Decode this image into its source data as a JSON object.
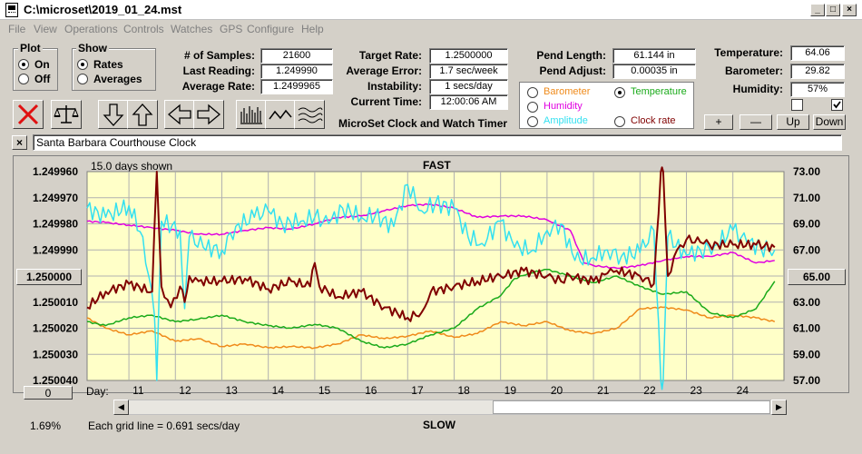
{
  "window": {
    "title": "C:\\microset\\2019_01_24.mst"
  },
  "menu": [
    "File",
    "View",
    "Operations",
    "Controls",
    "Watches",
    "GPS",
    "Configure",
    "Help"
  ],
  "plot_group": {
    "label": "Plot",
    "on": "On",
    "off": "Off",
    "selected": "On"
  },
  "show_group": {
    "label": "Show",
    "rates": "Rates",
    "averages": "Averages",
    "selected": "Rates"
  },
  "stats": {
    "samples_label": "# of Samples:",
    "samples": "21600",
    "last_label": "Last Reading:",
    "last": "1.249990",
    "avg_label": "Average Rate:",
    "avg": "1.2499965",
    "target_label": "Target Rate:",
    "target": "1.2500000",
    "avgerr_label": "Average Error:",
    "avgerr": "1.7 sec/week",
    "instab_label": "Instability:",
    "instab": "1 secs/day",
    "time_label": "Current Time:",
    "time": "12:00:06 AM",
    "pendlen_label": "Pend Length:",
    "pendlen": "61.144 in",
    "pendadj_label": "Pend Adjust:",
    "pendadj": "0.00035 in",
    "temp_label": "Temperature:",
    "temp": "64.06",
    "baro_label": "Barometer:",
    "baro": "29.82",
    "hum_label": "Humidity:",
    "hum": "57%"
  },
  "app_label": "MicroSet Clock and Watch Timer",
  "legend": {
    "barometer": "Barometer",
    "temperature": "Temperature",
    "humidity": "Humidity",
    "amplitude": "Amplitude",
    "clock_rate": "Clock rate",
    "selected": "Temperature"
  },
  "small_buttons": {
    "plus": "+",
    "minus": "—",
    "up": "Up",
    "down": "Down"
  },
  "description": "Santa Barbara Courthouse Clock",
  "plot": {
    "days_shown": "15.0 days shown",
    "fast": "FAST",
    "slow": "SLOW",
    "day_label": "Day:",
    "grid_note": "Each grid line = 0.691 secs/day",
    "left_value_btn": "1.250000",
    "right_value_btn": "65.00",
    "zero_btn": "0",
    "percent": "1.69%"
  },
  "chart_data": {
    "type": "line",
    "y_left_ticks": [
      "1.249960",
      "1.249970",
      "1.249980",
      "1.249990",
      "1.250000",
      "1.250010",
      "1.250020",
      "1.250030",
      "1.250040"
    ],
    "y_right_ticks": [
      "73.00",
      "71.00",
      "69.00",
      "67.00",
      "65.00",
      "63.00",
      "61.00",
      "59.00",
      "57.00"
    ],
    "x_ticks": [
      "11",
      "12",
      "13",
      "14",
      "15",
      "16",
      "17",
      "18",
      "19",
      "20",
      "21",
      "22",
      "23",
      "24"
    ],
    "ylim_left": [
      1.24996,
      1.25004
    ],
    "ylim_right": [
      57,
      73
    ],
    "xlim": [
      10.1,
      25.1
    ],
    "colors": {
      "background": "#ffffc8",
      "grid": "#b0b0b0",
      "clock_rate": "#800000",
      "amplitude": "#33e0f0",
      "humidity": "#e000e0",
      "temperature": "#1aaa1a",
      "barometer": "#ef8a1a"
    },
    "series": [
      {
        "key": "amplitude",
        "right_axis": true,
        "x": [
          10.1,
          10.5,
          11,
          11.3,
          11.55,
          11.6,
          11.7,
          12.1,
          12.2,
          12.3,
          12.6,
          13,
          13.3,
          13.7,
          14,
          14.3,
          14.7,
          15,
          15.3,
          15.6,
          16,
          16.3,
          16.7,
          17,
          17.3,
          17.6,
          18,
          18.3,
          18.6,
          19,
          19.3,
          19.7,
          20,
          20.3,
          20.6,
          21,
          21.3,
          21.6,
          22,
          22.3,
          22.45,
          22.5,
          22.6,
          23,
          23.3,
          23.6,
          24,
          24.3,
          24.6,
          24.9
        ],
        "y": [
          70.2,
          69.5,
          70.4,
          68.0,
          62.0,
          57.0,
          69.2,
          68.5,
          62.5,
          68.0,
          67.2,
          67.0,
          68.8,
          69.5,
          70.0,
          69.0,
          69.2,
          69.5,
          69.0,
          70.2,
          69.5,
          69.6,
          68.8,
          72.0,
          70.0,
          70.6,
          70.2,
          68.0,
          67.5,
          69.2,
          67.2,
          67.0,
          68.5,
          69.0,
          66.2,
          66.4,
          67.0,
          66.5,
          66.8,
          68.5,
          57.0,
          57.0,
          68.0,
          66.6,
          67.0,
          67.3,
          68.5,
          67.6,
          67.2,
          67.0
        ]
      },
      {
        "key": "humidity",
        "right_axis": true,
        "x": [
          10.1,
          10.5,
          11,
          11.5,
          12,
          12.5,
          13,
          13.5,
          14,
          14.5,
          15,
          15.5,
          16,
          16.5,
          17,
          17.5,
          18,
          18.5,
          19,
          19.5,
          20,
          20.5,
          20.8,
          21,
          21.5,
          22,
          22.5,
          23,
          23.5,
          24,
          24.5,
          24.9
        ],
        "y": [
          69.2,
          69.1,
          68.9,
          68.7,
          68.5,
          68.2,
          68.2,
          68.5,
          68.7,
          68.6,
          69.0,
          69.5,
          69.6,
          70.0,
          70.4,
          70.5,
          70.2,
          69.5,
          69.6,
          69.6,
          69.3,
          68.5,
          66.0,
          65.8,
          65.6,
          65.8,
          66.2,
          66.5,
          66.5,
          66.8,
          66.0,
          66.2
        ]
      },
      {
        "key": "clock_rate",
        "right_axis": false,
        "x": [
          10.1,
          10.5,
          11,
          11.5,
          11.6,
          11.7,
          11.9,
          12.1,
          12.2,
          12.3,
          12.5,
          13,
          13.5,
          14,
          14.5,
          14.9,
          15,
          15.1,
          15.5,
          16,
          16.5,
          17,
          17.3,
          17.5,
          18,
          18.5,
          19,
          19.5,
          20,
          20.3,
          20.5,
          21,
          21.3,
          21.5,
          22,
          22.3,
          22.45,
          22.5,
          22.6,
          22.8,
          23,
          23.3,
          23.5,
          24,
          24.5,
          24.9
        ],
        "y": [
          1.250012,
          1.250006,
          1.250003,
          1.250006,
          1.24996,
          1.250004,
          1.250012,
          1.250004,
          1.25001,
          1.25,
          1.250002,
          1.250002,
          1.250001,
          1.250005,
          1.250002,
          1.250004,
          1.249995,
          1.250004,
          1.250008,
          1.250006,
          1.250012,
          1.250016,
          1.250014,
          1.250006,
          1.250004,
          1.250002,
          1.25,
          1.249998,
          1.25,
          1.250002,
          1.25,
          1.250002,
          1.249999,
          1.249998,
          1.25,
          1.250003,
          1.24996,
          1.24996,
          1.25,
          1.24999,
          1.249986,
          1.249987,
          1.249988,
          1.249988,
          1.249988,
          1.249989
        ]
      },
      {
        "key": "temperature",
        "right_axis": true,
        "x": [
          10.1,
          10.5,
          11,
          11.5,
          12,
          12.5,
          13,
          13.5,
          14,
          14.5,
          15,
          15.5,
          16,
          16.5,
          17,
          17.5,
          18,
          18.5,
          19,
          19.3,
          19.6,
          20,
          20.5,
          21,
          21.5,
          22,
          22.5,
          23,
          23.5,
          24,
          24.5,
          24.9
        ],
        "y": [
          61.5,
          61.2,
          61.8,
          62.0,
          61.5,
          61.7,
          62.0,
          61.5,
          61.2,
          61.0,
          61.3,
          61.0,
          60.0,
          59.5,
          59.8,
          60.5,
          61.0,
          62.5,
          63.5,
          64.8,
          65.2,
          65.5,
          65.0,
          64.5,
          65.0,
          64.2,
          63.6,
          63.8,
          62.2,
          61.8,
          62.5,
          64.6
        ]
      },
      {
        "key": "barometer",
        "right_axis": true,
        "x": [
          10.1,
          10.5,
          11,
          11.5,
          12,
          12.5,
          13,
          13.5,
          14,
          14.5,
          15,
          15.5,
          16,
          16.5,
          17,
          17.5,
          18,
          18.5,
          19,
          19.5,
          20,
          20.5,
          21,
          21.5,
          22,
          22.5,
          23,
          23.5,
          24,
          24.5,
          24.9
        ],
        "y": [
          61.8,
          61.0,
          60.5,
          60.8,
          60.0,
          60.2,
          59.6,
          59.8,
          59.5,
          59.6,
          59.5,
          59.8,
          60.5,
          60.2,
          60.4,
          60.8,
          60.3,
          60.6,
          61.5,
          61.2,
          61.5,
          60.8,
          60.6,
          61.0,
          62.5,
          62.6,
          62.4,
          61.8,
          62.0,
          61.8,
          61.5
        ]
      }
    ]
  }
}
